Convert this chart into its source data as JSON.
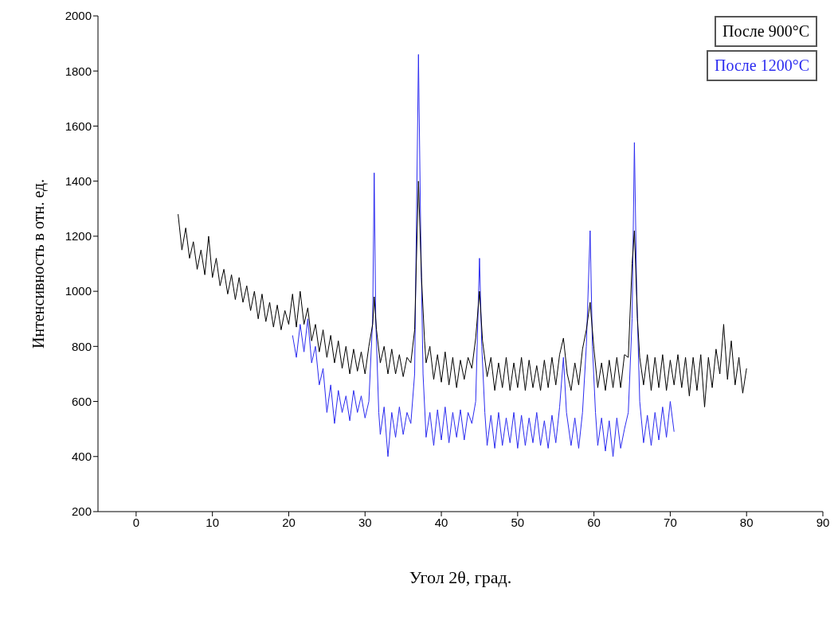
{
  "chart_data": {
    "type": "line",
    "xlabel": "Угол 2θ, град.",
    "ylabel": "Интенсивность в отн. ед.",
    "xlim": [
      -5,
      90
    ],
    "xticks": [
      0,
      10,
      20,
      30,
      40,
      50,
      60,
      70,
      80,
      90
    ],
    "ylim": [
      200,
      2000
    ],
    "yticks": [
      200,
      400,
      600,
      800,
      1000,
      1200,
      1400,
      1600,
      1800,
      2000
    ],
    "legend": "top right",
    "marker": "none",
    "line_style": "solid",
    "series": [
      {
        "name": "После 900°C",
        "color": "#000000",
        "x": [
          5.5,
          6,
          6.5,
          7,
          7.5,
          8,
          8.5,
          9,
          9.5,
          10,
          10.5,
          11,
          11.5,
          12,
          12.5,
          13,
          13.5,
          14,
          14.5,
          15,
          15.5,
          16,
          16.5,
          17,
          17.5,
          18,
          18.5,
          19,
          19.5,
          20,
          20.5,
          21,
          21.5,
          22,
          22.5,
          23,
          23.5,
          24,
          24.5,
          25,
          25.5,
          26,
          26.5,
          27,
          27.5,
          28,
          28.5,
          29,
          29.5,
          30,
          30.5,
          31,
          31.2,
          31.5,
          32,
          32.5,
          33,
          33.5,
          34,
          34.5,
          35,
          35.5,
          36,
          36.5,
          37,
          37.4,
          37.8,
          38,
          38.5,
          39,
          39.5,
          40,
          40.5,
          41,
          41.5,
          42,
          42.5,
          43,
          43.5,
          44,
          44.5,
          45,
          45.4,
          46,
          46.5,
          47,
          47.5,
          48,
          48.5,
          49,
          49.5,
          50,
          50.5,
          51,
          51.5,
          52,
          52.5,
          53,
          53.5,
          54,
          54.5,
          55,
          55.5,
          56,
          56.5,
          57,
          57.5,
          58,
          58.5,
          59,
          59.5,
          60,
          60.5,
          61,
          61.5,
          62,
          62.5,
          63,
          63.5,
          64,
          64.5,
          65,
          65.3,
          65.7,
          66,
          66.5,
          67,
          67.5,
          68,
          68.5,
          69,
          69.5,
          70,
          70.5,
          71,
          71.5,
          72,
          72.5,
          73,
          73.5,
          74,
          74.5,
          75,
          75.5,
          76,
          76.5,
          77,
          77.5,
          78,
          78.5,
          79,
          79.5,
          80
        ],
        "values": [
          1280,
          1150,
          1230,
          1120,
          1180,
          1080,
          1150,
          1060,
          1200,
          1050,
          1120,
          1020,
          1080,
          990,
          1060,
          970,
          1050,
          960,
          1020,
          930,
          1000,
          900,
          990,
          890,
          960,
          870,
          950,
          860,
          930,
          880,
          990,
          870,
          1000,
          880,
          940,
          820,
          880,
          780,
          860,
          760,
          840,
          740,
          820,
          720,
          800,
          700,
          790,
          710,
          780,
          700,
          800,
          880,
          980,
          860,
          740,
          800,
          700,
          790,
          700,
          770,
          690,
          760,
          740,
          860,
          1400,
          1050,
          820,
          740,
          800,
          680,
          770,
          670,
          780,
          660,
          760,
          650,
          750,
          680,
          760,
          720,
          830,
          1000,
          820,
          690,
          760,
          640,
          740,
          650,
          760,
          640,
          740,
          650,
          760,
          640,
          750,
          650,
          730,
          640,
          750,
          650,
          760,
          660,
          770,
          830,
          700,
          640,
          740,
          660,
          790,
          860,
          960,
          790,
          650,
          740,
          640,
          750,
          650,
          760,
          650,
          770,
          760,
          1100,
          1220,
          900,
          760,
          660,
          770,
          640,
          760,
          650,
          770,
          640,
          750,
          660,
          770,
          650,
          760,
          620,
          760,
          640,
          770,
          580,
          760,
          650,
          790,
          700,
          880,
          680,
          820,
          660,
          760,
          630,
          720
        ]
      },
      {
        "name": "После 1200°C",
        "color": "#2b2bf0",
        "x": [
          20.5,
          21,
          21.5,
          22,
          22.5,
          23,
          23.5,
          24,
          24.5,
          25,
          25.5,
          26,
          26.5,
          27,
          27.5,
          28,
          28.5,
          29,
          29.5,
          30,
          30.5,
          31,
          31.2,
          31.4,
          31.8,
          32,
          32.5,
          33,
          33.5,
          34,
          34.5,
          35,
          35.5,
          36,
          36.5,
          37,
          37.3,
          37.6,
          38,
          38.5,
          39,
          39.5,
          40,
          40.5,
          41,
          41.5,
          42,
          42.5,
          43,
          43.5,
          44,
          44.5,
          45,
          45.3,
          45.7,
          46,
          46.5,
          47,
          47.5,
          48,
          48.5,
          49,
          49.5,
          50,
          50.5,
          51,
          51.5,
          52,
          52.5,
          53,
          53.5,
          54,
          54.5,
          55,
          55.5,
          56,
          56.4,
          57,
          57.5,
          58,
          58.5,
          59,
          59.5,
          59.8,
          60.2,
          60.5,
          61,
          61.5,
          62,
          62.5,
          63,
          63.5,
          64,
          64.5,
          65,
          65.3,
          65.6,
          66,
          66.5,
          67,
          67.5,
          68,
          68.5,
          69,
          69.5,
          70,
          70.5
        ],
        "values": [
          840,
          760,
          880,
          780,
          900,
          740,
          800,
          660,
          720,
          560,
          660,
          520,
          640,
          560,
          620,
          530,
          640,
          560,
          620,
          540,
          600,
          900,
          1430,
          900,
          560,
          480,
          580,
          400,
          560,
          470,
          580,
          480,
          560,
          520,
          700,
          1860,
          1200,
          700,
          470,
          560,
          440,
          570,
          460,
          580,
          450,
          560,
          470,
          570,
          460,
          560,
          520,
          600,
          1120,
          800,
          560,
          440,
          550,
          430,
          560,
          440,
          540,
          450,
          560,
          430,
          550,
          440,
          540,
          450,
          560,
          440,
          530,
          430,
          550,
          450,
          580,
          760,
          560,
          440,
          540,
          430,
          560,
          800,
          1220,
          800,
          560,
          440,
          540,
          420,
          530,
          400,
          540,
          430,
          500,
          560,
          900,
          1540,
          1000,
          600,
          450,
          550,
          440,
          560,
          460,
          580,
          470,
          600,
          490
        ]
      }
    ]
  }
}
